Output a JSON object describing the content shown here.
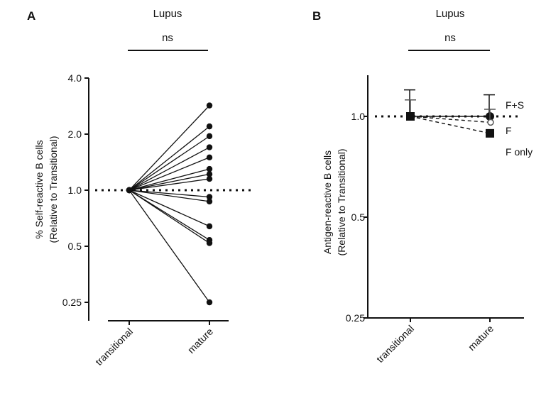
{
  "chart_data": [
    {
      "panel": "A",
      "type": "line",
      "title": "Lupus",
      "significance": "ns",
      "ylabel": "% Self-reactive B cells",
      "ylabel2": "(Relative to Transitional)",
      "y_scale": "log2",
      "yticks": [
        {
          "value": 4.0,
          "label": "4.0"
        },
        {
          "value": 2.0,
          "label": "2.0"
        },
        {
          "value": 1.0,
          "label": "1.0"
        },
        {
          "value": 0.5,
          "label": "0.5"
        },
        {
          "value": 0.25,
          "label": "0.25"
        }
      ],
      "ylim": [
        0.21,
        4.0
      ],
      "categories": [
        "transitional",
        "mature"
      ],
      "reference_line": 1.0,
      "grid": false,
      "pairs": [
        [
          1.0,
          2.85
        ],
        [
          1.0,
          2.2
        ],
        [
          1.0,
          1.95
        ],
        [
          1.0,
          1.7
        ],
        [
          1.0,
          1.5
        ],
        [
          1.0,
          1.3
        ],
        [
          1.0,
          1.22
        ],
        [
          1.0,
          1.15
        ],
        [
          1.0,
          0.92
        ],
        [
          1.0,
          0.87
        ],
        [
          1.0,
          0.64
        ],
        [
          1.0,
          0.54
        ],
        [
          1.0,
          0.52
        ],
        [
          1.0,
          0.25
        ]
      ]
    },
    {
      "panel": "B",
      "type": "line",
      "title": "Lupus",
      "significance": "ns",
      "ylabel": "Antigen-reactive B cells",
      "ylabel2": "(Relative to Transitional)",
      "y_scale": "log2",
      "yticks": [
        {
          "value": 1.0,
          "label": "1.0"
        },
        {
          "value": 0.5,
          "label": "0.5"
        },
        {
          "value": 0.25,
          "label": "0.25"
        }
      ],
      "ylim": [
        0.25,
        1.5
      ],
      "categories": [
        "transitional",
        "mature"
      ],
      "reference_line": 1.0,
      "grid": false,
      "legend_placement": "right",
      "series": [
        {
          "name": "F+S",
          "marker": "circle",
          "values": [
            1.0,
            1.0
          ],
          "err_upper": [
            1.2,
            1.16
          ],
          "err_lower": [
            1.0,
            1.0
          ]
        },
        {
          "name": "F",
          "marker": "small-circle",
          "values": [
            1.0,
            0.96
          ],
          "err_upper": [
            1.12,
            1.05
          ],
          "err_lower": [
            1.0,
            0.96
          ]
        },
        {
          "name": "F only",
          "marker": "square",
          "values": [
            1.0,
            0.89
          ],
          "err_upper": [
            1.0,
            0.89
          ],
          "err_lower": [
            1.0,
            0.89
          ]
        }
      ]
    }
  ]
}
